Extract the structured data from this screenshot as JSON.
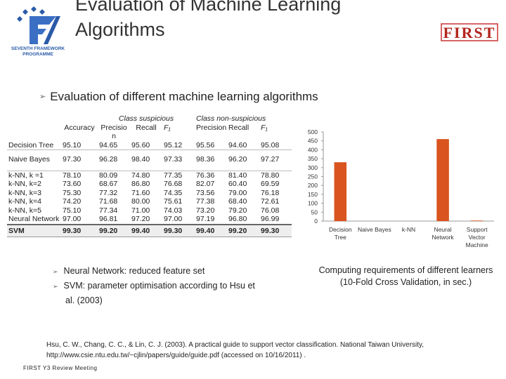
{
  "header": {
    "title_lines": [
      "Evaluation of Machine Learning",
      "Algorithms"
    ],
    "fp7_logo_lines": [
      "SEVENTH FRAMEWORK",
      "PROGRAMME"
    ],
    "first_logo": "FIRST"
  },
  "bullet": "Evaluation of different machine learning algorithms",
  "table": {
    "group_headers": [
      "Class suspicious",
      "Class non-suspicious"
    ],
    "column_headers": [
      "Accuracy",
      "Precision",
      "Recall",
      "F₁",
      "Precision",
      "Recall",
      "F₁"
    ],
    "rows": [
      [
        "Decision Tree",
        "95.10",
        "94.65",
        "95.60",
        "95.12",
        "95.56",
        "94.60",
        "95.08"
      ],
      [
        "Naive Bayes",
        "97.30",
        "96.28",
        "98.40",
        "97.33",
        "98.36",
        "96.20",
        "97.27"
      ],
      [
        "k-NN, k =1",
        "78.10",
        "80.09",
        "74.80",
        "77.35",
        "76.36",
        "81.40",
        "78.80"
      ],
      [
        "k-NN, k=2",
        "73.60",
        "68.67",
        "86.80",
        "76.68",
        "82.07",
        "60.40",
        "69.59"
      ],
      [
        "k-NN, k=3",
        "75.30",
        "77.32",
        "71.60",
        "74.35",
        "73.56",
        "79.00",
        "76.18"
      ],
      [
        "k-NN, k=4",
        "74.20",
        "71.68",
        "80.00",
        "75.61",
        "77.38",
        "68.40",
        "72.61"
      ],
      [
        "k-NN, k=5",
        "75.10",
        "77.34",
        "71.00",
        "74.03",
        "73.20",
        "79.20",
        "76.08"
      ],
      [
        "Neural Network",
        "97.00",
        "96.81",
        "97.20",
        "97.00",
        "97.19",
        "96.80",
        "96.99"
      ],
      [
        "SVM",
        "99.30",
        "99.20",
        "99.40",
        "99.30",
        "99.40",
        "99.20",
        "99.30"
      ]
    ]
  },
  "notes": [
    "Neural Network: reduced feature set",
    "SVM: parameter optimisation according to Hsu et al. (2003)"
  ],
  "chart_data": {
    "type": "bar",
    "categories": [
      "Decision Tree",
      "Naive Bayes",
      "k-NN",
      "Neural Network",
      "Support Vector Machine"
    ],
    "values": [
      330,
      0,
      0,
      460,
      3
    ],
    "color": "#d9541e",
    "ylim": [
      0,
      500
    ],
    "yticks": [
      0,
      50,
      100,
      150,
      200,
      250,
      300,
      350,
      400,
      450,
      500
    ],
    "caption": [
      "Computing requirements of different learners",
      "(10-Fold Cross Validation, in sec.)"
    ]
  },
  "reference": "Hsu, C. W., Chang, C. C., & Lin, C. J. (2003). A practical guide to support vector classification. National Taiwan University, http://www.csie.ntu.edu.tw/~cjlin/papers/guide/guide.pdf (accessed on 10/16/2011) .",
  "footer": "FIRST Y3 Review Meeting"
}
